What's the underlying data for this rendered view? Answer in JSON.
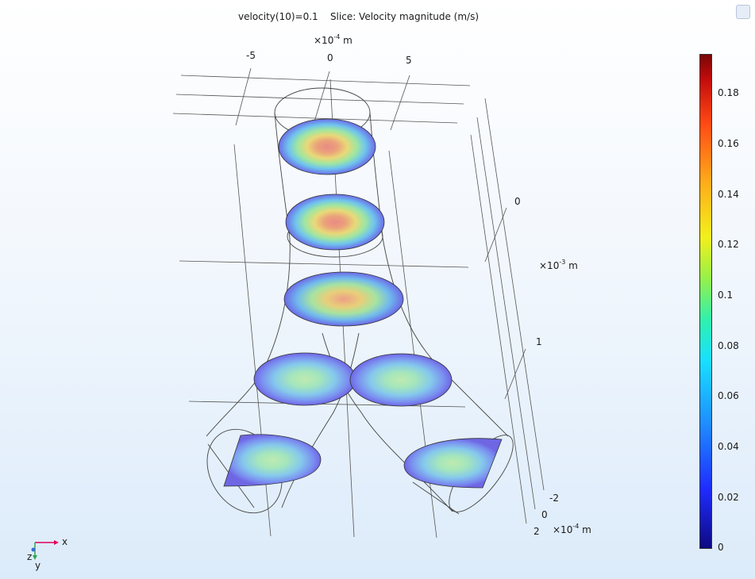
{
  "plot": {
    "title_left": "velocity(10)=0.1",
    "title_right": "Slice: Velocity magnitude (m/s)",
    "axis_x_scale": "×10",
    "axis_x_exp": "-4",
    "axis_x_unit": "m",
    "axis_x_ticks": [
      "-5",
      "0",
      "5"
    ],
    "axis_z_scale": "×10",
    "axis_z_exp": "-3",
    "axis_z_unit": "m",
    "axis_z_ticks": [
      "0",
      "1"
    ],
    "axis_y_scale": "×10",
    "axis_y_exp": "-4",
    "axis_y_unit": "m",
    "axis_y_ticks": [
      "-2",
      "0",
      "2"
    ]
  },
  "colorbar": {
    "ticks": [
      "0.18",
      "0.16",
      "0.14",
      "0.12",
      "0.1",
      "0.08",
      "0.06",
      "0.04",
      "0.02",
      "0"
    ]
  },
  "triad": {
    "x": "x",
    "y": "y",
    "z": "z"
  },
  "colors": {
    "x_axis": "#e0005a",
    "y_axis": "#2fa84f",
    "z_axis": "#3a6fd0"
  },
  "icons": {
    "corner": "zoom-extents-icon"
  }
}
